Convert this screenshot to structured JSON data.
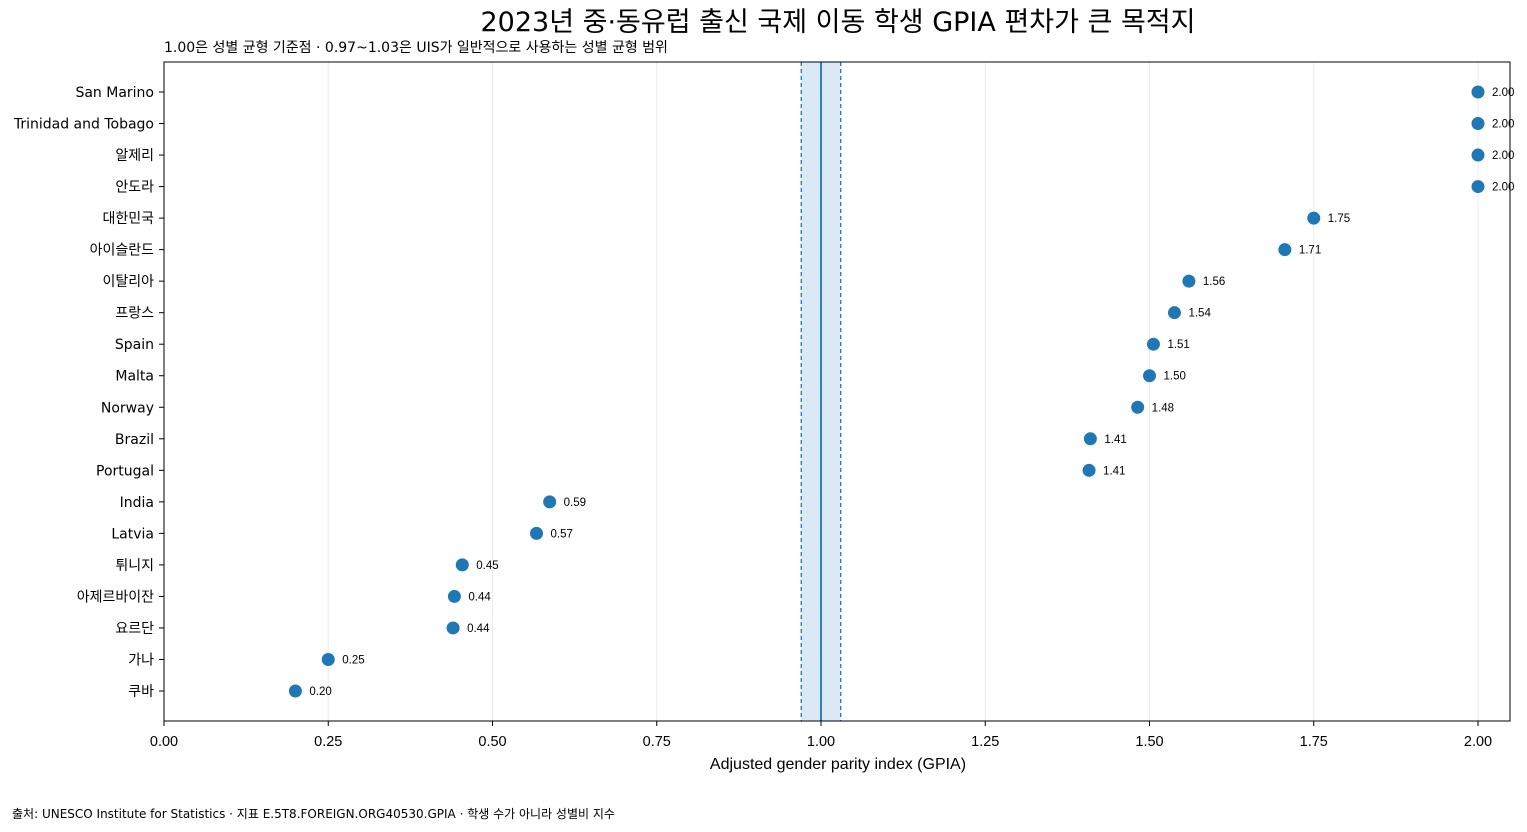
{
  "chart_data": {
    "type": "scatter",
    "title": "2023년 중·동유럽 출신 국제 이동 학생 GPIA 편차가 큰 목적지",
    "subtitle": "1.00은 성별 균형 기준점 · 0.97~1.03은 UIS가 일반적으로 사용하는 성별 균형 범위",
    "xlabel": "Adjusted gender parity index (GPIA)",
    "ylabel": "",
    "xlim": [
      0,
      2.05
    ],
    "x_ticks": [
      "0.00",
      "0.25",
      "0.50",
      "0.75",
      "1.00",
      "1.25",
      "1.50",
      "1.75",
      "2.00"
    ],
    "grid": "vertical",
    "reference_line": 1.0,
    "parity_band": [
      0.97,
      1.03
    ],
    "marker_color": "#1f77b4",
    "band_color": "#dbe9f5",
    "categories": [
      "San Marino",
      "Trinidad and Tobago",
      "알제리",
      "안도라",
      "대한민국",
      "아이슬란드",
      "이탈리아",
      "프랑스",
      "Spain",
      "Malta",
      "Norway",
      "Brazil",
      "Portugal",
      "India",
      "Latvia",
      "튀니지",
      "아제르바이잔",
      "요르단",
      "가나",
      "쿠바"
    ],
    "values": [
      2.0,
      2.0,
      2.0,
      2.0,
      1.75,
      1.706,
      1.56,
      1.538,
      1.506,
      1.5,
      1.482,
      1.41,
      1.408,
      0.587,
      0.567,
      0.454,
      0.442,
      0.44,
      0.25,
      0.2
    ],
    "value_labels": [
      "2.00",
      "2.00",
      "2.00",
      "2.00",
      "1.75",
      "1.71",
      "1.56",
      "1.54",
      "1.51",
      "1.50",
      "1.48",
      "1.41",
      "1.41",
      "0.59",
      "0.57",
      "0.45",
      "0.44",
      "0.44",
      "0.25",
      "0.20"
    ]
  },
  "source_note": "출처: UNESCO Institute for Statistics · 지표 E.5T8.FOREIGN.ORG40530.GPIA · 학생 수가 아니라 성별비 지수"
}
